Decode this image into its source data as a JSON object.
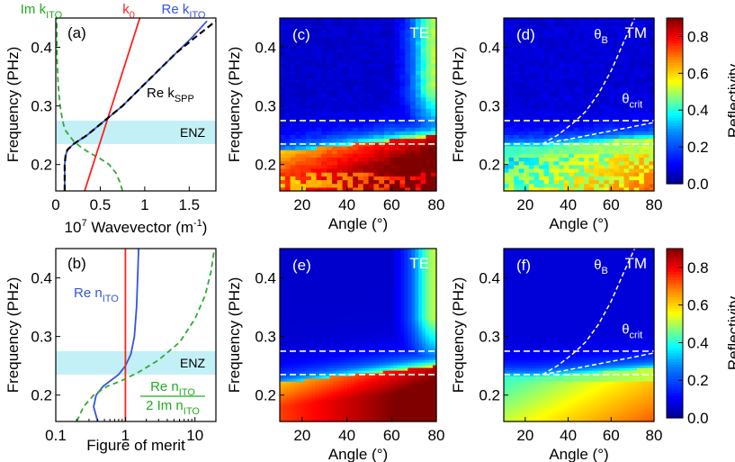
{
  "figure": {
    "colorbar": {
      "label": "Reflectivity",
      "ticks": [
        "0.0",
        "0.2",
        "0.4",
        "0.6",
        "0.8"
      ],
      "colors": [
        "#00008f",
        "#0000ff",
        "#0080ff",
        "#00ffff",
        "#80ff80",
        "#ffff00",
        "#ff8000",
        "#ff0000",
        "#800000"
      ]
    },
    "enz_label": "ENZ"
  },
  "chart_data": [
    {
      "type": "line",
      "panel": "(a)",
      "xlabel_parts": [
        "10",
        "7",
        " Wavevector (m",
        "-1",
        ")"
      ],
      "ylabel": "Frequency (PHz)",
      "xlim": [
        0,
        1.8
      ],
      "ylim": [
        0.155,
        0.45
      ],
      "xticks": [
        0,
        0.5,
        1.0,
        1.5
      ],
      "xticklabels": [
        "0",
        "0.5",
        "1",
        "1.5"
      ],
      "yticks": [
        0.2,
        0.3,
        0.4
      ],
      "yticklabels": [
        "0.2",
        "0.3",
        "0.4"
      ],
      "enz_band": [
        0.235,
        0.275
      ],
      "title_labels": [
        {
          "main": "Im k",
          "sub": "ITO",
          "color": "#22aa22"
        },
        {
          "main": "k",
          "sub": "0",
          "color": "#ff2020"
        },
        {
          "main": "Re k",
          "sub": "ITO",
          "color": "#3355dd"
        }
      ],
      "annotation": {
        "main": "Re k",
        "sub": "SPP"
      },
      "series": [
        {
          "name": "Im kITO",
          "color": "#33aa33",
          "dash": "6,4",
          "x": [
            0.75,
            0.72,
            0.68,
            0.6,
            0.5,
            0.38,
            0.28,
            0.2,
            0.15,
            0.1,
            0.07,
            0.05,
            0.035,
            0.025,
            0.02,
            0.015,
            0.012,
            0.01
          ],
          "y": [
            0.155,
            0.17,
            0.185,
            0.2,
            0.21,
            0.22,
            0.23,
            0.24,
            0.25,
            0.26,
            0.28,
            0.3,
            0.32,
            0.34,
            0.36,
            0.38,
            0.41,
            0.45
          ]
        },
        {
          "name": "k0",
          "color": "#ff2020",
          "dash": "",
          "x": [
            0.325,
            0.945
          ],
          "y": [
            0.155,
            0.45
          ]
        },
        {
          "name": "Re kITO",
          "color": "#3355dd",
          "dash": "",
          "x": [
            0.1,
            0.1,
            0.1,
            0.11,
            0.13,
            0.2,
            0.35,
            0.55,
            0.75,
            0.95,
            1.15,
            1.35,
            1.52,
            1.7
          ],
          "y": [
            0.155,
            0.18,
            0.2,
            0.215,
            0.225,
            0.235,
            0.25,
            0.275,
            0.3,
            0.33,
            0.36,
            0.39,
            0.415,
            0.445
          ]
        },
        {
          "name": "Re kSPP",
          "color": "#000000",
          "dash": "7,4",
          "x": [
            0.1,
            0.1,
            0.11,
            0.13,
            0.2,
            0.35,
            0.55,
            0.75,
            0.95,
            1.15,
            1.35,
            1.55,
            1.8
          ],
          "y": [
            0.155,
            0.2,
            0.215,
            0.225,
            0.235,
            0.25,
            0.275,
            0.3,
            0.33,
            0.36,
            0.39,
            0.415,
            0.445
          ]
        }
      ]
    },
    {
      "type": "line",
      "panel": "(b)",
      "xlabel": "Figure of merit",
      "ylabel": "Frequency (PHz)",
      "xscale": "log",
      "xlim": [
        0.1,
        20
      ],
      "ylim": [
        0.155,
        0.45
      ],
      "xticks": [
        0.1,
        1,
        10
      ],
      "xticklabels": [
        "0.1",
        "1",
        "10"
      ],
      "yticks": [
        0.2,
        0.3,
        0.4
      ],
      "yticklabels": [
        "0.2",
        "0.3",
        "0.4"
      ],
      "enz_band": [
        0.235,
        0.275
      ],
      "annotation": {
        "main": "Re n",
        "sub": "ITO"
      },
      "fom_label": {
        "num_main": "Re n",
        "num_sub": "ITO",
        "den_main": "2 Im n",
        "den_sub": "ITO"
      },
      "series": [
        {
          "name": "Re nITO",
          "color": "#3355dd",
          "dash": "",
          "x": [
            0.4,
            0.35,
            0.38,
            0.48,
            0.62,
            0.8,
            1.0,
            1.2,
            1.35,
            1.45,
            1.5,
            1.55
          ],
          "y": [
            0.155,
            0.18,
            0.2,
            0.215,
            0.225,
            0.235,
            0.25,
            0.27,
            0.3,
            0.35,
            0.4,
            0.45
          ]
        },
        {
          "name": "k0 reference",
          "color": "#ff2020",
          "dash": "",
          "x": [
            1,
            1
          ],
          "y": [
            0.155,
            0.45
          ]
        },
        {
          "name": "FOM",
          "color": "#33aa33",
          "dash": "6,4",
          "x": [
            0.2,
            0.25,
            0.35,
            0.55,
            0.9,
            1.6,
            3.0,
            6.0,
            10.0,
            14.0,
            17.0,
            19.0
          ],
          "y": [
            0.155,
            0.18,
            0.2,
            0.215,
            0.225,
            0.24,
            0.26,
            0.29,
            0.33,
            0.37,
            0.41,
            0.45
          ]
        }
      ]
    },
    {
      "type": "heatmap",
      "panel": "(c)",
      "mode": "TE",
      "smooth": false,
      "xlabel": "Angle (°)",
      "ylabel": "Frequency (PHz)",
      "xlim": [
        10,
        80
      ],
      "ylim": [
        0.155,
        0.45
      ],
      "xticks": [
        20,
        40,
        60,
        80
      ],
      "yticks": [
        0.2,
        0.3,
        0.4
      ],
      "yticklabels": [
        "0.2",
        "0.3",
        "0.4"
      ],
      "hlines": [
        0.275,
        0.235
      ]
    },
    {
      "type": "heatmap",
      "panel": "(d)",
      "mode": "TM",
      "smooth": false,
      "xlabel": "Angle (°)",
      "ylabel": "Frequency (PHz)",
      "xlim": [
        10,
        80
      ],
      "ylim": [
        0.155,
        0.45
      ],
      "xticks": [
        20,
        40,
        60,
        80
      ],
      "yticks": [
        0.2,
        0.3,
        0.4
      ],
      "yticklabels": [
        "0.2",
        "0.3",
        "0.4"
      ],
      "hlines": [
        0.275,
        0.235
      ],
      "labels": [
        {
          "main": "θ",
          "sub": "B"
        },
        {
          "main": "θ",
          "sub": "crit"
        }
      ]
    },
    {
      "type": "heatmap",
      "panel": "(e)",
      "mode": "TE",
      "smooth": true,
      "xlabel": "Angle (°)",
      "ylabel": "Frequency (PHz)",
      "xlim": [
        10,
        80
      ],
      "ylim": [
        0.155,
        0.45
      ],
      "xticks": [
        20,
        40,
        60,
        80
      ],
      "yticks": [
        0.2,
        0.3,
        0.4
      ],
      "yticklabels": [
        "0.2",
        "0.3",
        "0.4"
      ],
      "hlines": [
        0.275,
        0.235
      ]
    },
    {
      "type": "heatmap",
      "panel": "(f)",
      "mode": "TM",
      "smooth": true,
      "xlabel": "Angle (°)",
      "ylabel": "Frequency (PHz)",
      "xlim": [
        10,
        80
      ],
      "ylim": [
        0.155,
        0.45
      ],
      "xticks": [
        20,
        40,
        60,
        80
      ],
      "yticks": [
        0.2,
        0.3,
        0.4
      ],
      "yticklabels": [
        "0.2",
        "0.3",
        "0.4"
      ],
      "hlines": [
        0.275,
        0.235
      ],
      "labels": [
        {
          "main": "θ",
          "sub": "B"
        },
        {
          "main": "θ",
          "sub": "crit"
        }
      ]
    }
  ]
}
